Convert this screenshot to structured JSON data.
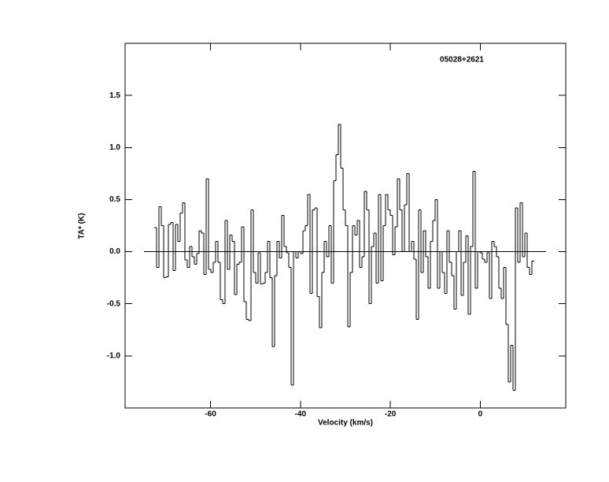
{
  "chart_data": {
    "type": "step",
    "annotation": "05028+2621",
    "xlabel": "Velocity (km/s)",
    "ylabel": "TA* (K)",
    "xlim": [
      -79,
      19
    ],
    "ylim": [
      -1.5,
      2.0
    ],
    "xticks": [
      -60,
      -40,
      -20,
      0
    ],
    "yticks": [
      {
        "value": -1.0,
        "label": "-1.0"
      },
      {
        "value": -0.5,
        "label": "-0.5"
      },
      {
        "value": 0,
        "label": "0.0"
      },
      {
        "value": 0.5,
        "label": "0.5"
      },
      {
        "value": 1.0,
        "label": "1.0"
      },
      {
        "value": 1.5,
        "label": "1.5"
      }
    ],
    "baseline": 0,
    "color": "#000000",
    "x": [
      -72.3,
      -71.78,
      -71.25,
      -70.73,
      -70.2,
      -69.68,
      -69.15,
      -68.63,
      -68.1,
      -67.58,
      -67.05,
      -66.53,
      -66.0,
      -65.48,
      -64.95,
      -64.43,
      -63.9,
      -63.38,
      -62.85,
      -62.33,
      -61.8,
      -61.28,
      -60.75,
      -60.23,
      -59.7,
      -59.18,
      -58.65,
      -58.13,
      -57.6,
      -57.08,
      -56.55,
      -56.03,
      -55.5,
      -54.98,
      -54.45,
      -53.93,
      -53.4,
      -52.88,
      -52.35,
      -51.83,
      -51.3,
      -50.78,
      -50.25,
      -49.73,
      -49.2,
      -48.68,
      -48.15,
      -47.63,
      -47.1,
      -46.58,
      -46.05,
      -45.53,
      -45.0,
      -44.48,
      -43.95,
      -43.43,
      -42.9,
      -42.38,
      -41.85,
      -41.33,
      -40.8,
      -40.28,
      -39.75,
      -39.23,
      -38.7,
      -38.18,
      -37.65,
      -37.13,
      -36.6,
      -36.08,
      -35.55,
      -35.03,
      -34.5,
      -33.98,
      -33.45,
      -32.93,
      -32.4,
      -31.88,
      -31.35,
      -30.83,
      -30.3,
      -29.78,
      -29.25,
      -28.73,
      -28.2,
      -27.68,
      -27.15,
      -26.63,
      -26.1,
      -25.58,
      -25.05,
      -24.53,
      -24.0,
      -23.48,
      -22.95,
      -22.43,
      -21.9,
      -21.38,
      -20.85,
      -20.33,
      -19.8,
      -19.28,
      -18.75,
      -18.23,
      -17.7,
      -17.18,
      -16.65,
      -16.13,
      -15.6,
      -15.08,
      -14.55,
      -14.03,
      -13.5,
      -12.98,
      -12.45,
      -11.93,
      -11.4,
      -10.88,
      -10.35,
      -9.83,
      -9.3,
      -8.78,
      -8.25,
      -7.73,
      -7.2,
      -6.68,
      -6.15,
      -5.63,
      -5.1,
      -4.58,
      -4.05,
      -3.53,
      -3.0,
      -2.48,
      -1.95,
      -1.43,
      -0.9,
      -0.38,
      0.15,
      0.67,
      1.2,
      1.72,
      2.25,
      2.77,
      3.3,
      3.82,
      4.35,
      4.87,
      5.4,
      5.92,
      6.45,
      6.97,
      7.5,
      8.02,
      8.55,
      9.07,
      9.6,
      10.12,
      10.65,
      11.17,
      11.7
    ],
    "values": [
      0.23,
      -0.15,
      0.43,
      0.25,
      -0.25,
      -0.24,
      0.26,
      0.28,
      -0.18,
      0.26,
      0.1,
      0.37,
      0.47,
      -0.08,
      -0.15,
      0.05,
      -0.05,
      -0.12,
      -0.02,
      0.2,
      0.18,
      -0.22,
      0.7,
      -0.17,
      -0.2,
      -0.1,
      0.1,
      -0.1,
      -0.46,
      -0.5,
      0.3,
      -0.17,
      0.16,
      0.1,
      -0.41,
      -0.12,
      -0.1,
      0.24,
      -0.48,
      -0.65,
      -0.66,
      0.4,
      -0.2,
      -0.3,
      -0.01,
      -0.31,
      -0.3,
      -0.2,
      0.1,
      -0.25,
      -0.91,
      -0.23,
      0.1,
      -0.06,
      0.35,
      0.05,
      -0.01,
      -0.15,
      -1.28,
      0.0,
      -0.06,
      0.0,
      -0.02,
      0.2,
      0.25,
      0.55,
      -0.4,
      0.4,
      0.42,
      -0.43,
      -0.73,
      -0.2,
      0.1,
      -0.05,
      0.25,
      -0.3,
      0.68,
      0.93,
      1.22,
      0.8,
      0.4,
      0.25,
      -0.72,
      -0.2,
      0.25,
      0.16,
      0.3,
      -0.15,
      -0.05,
      0.58,
      0.4,
      -0.5,
      0.05,
      0.18,
      -0.3,
      0.55,
      -0.28,
      0.25,
      0.55,
      0.4,
      0.35,
      -0.03,
      0.24,
      0.7,
      0.4,
      0.0,
      0.45,
      0.75,
      0.0,
      0.1,
      -0.07,
      -0.65,
      0.4,
      -0.2,
      0.2,
      -0.05,
      -0.35,
      0.1,
      0.3,
      0.5,
      -0.35,
      0.0,
      -0.2,
      -0.4,
      0.2,
      -0.1,
      -0.23,
      -0.55,
      0.0,
      0.2,
      -0.42,
      -0.1,
      0.15,
      -0.6,
      0.05,
      0.77,
      -0.35,
      0.0,
      -0.01,
      -0.07,
      -0.1,
      -0.01,
      -0.45,
      0.1,
      0.05,
      -0.05,
      -0.35,
      -0.45,
      -0.15,
      -0.7,
      -1.25,
      -0.9,
      -1.33,
      0.42,
      -0.1,
      0.47,
      -0.05,
      0.18,
      -0.15,
      -0.22,
      -0.09
    ]
  }
}
